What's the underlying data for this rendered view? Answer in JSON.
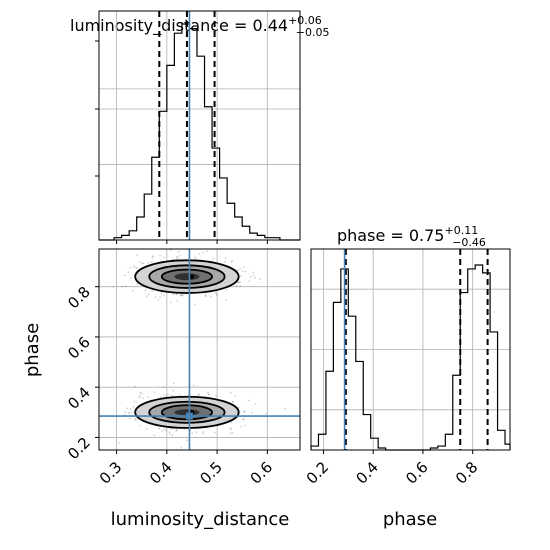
{
  "chart_data": [
    {
      "type": "histogram",
      "panel": "luminosity_distance",
      "title": {
        "main": "luminosity_distance = 0.44",
        "sup": "+0.06",
        "sub": "−0.05"
      },
      "xlim": [
        0.265,
        0.665
      ],
      "bin_edges": [
        0.265,
        0.28,
        0.295,
        0.31,
        0.325,
        0.34,
        0.355,
        0.37,
        0.385,
        0.4,
        0.415,
        0.43,
        0.445,
        0.46,
        0.475,
        0.49,
        0.505,
        0.52,
        0.535,
        0.55,
        0.565,
        0.58,
        0.595,
        0.61,
        0.625,
        0.64,
        0.655,
        0.665
      ],
      "counts": [
        0,
        0,
        1,
        2,
        4,
        10,
        20,
        36,
        56,
        76,
        90,
        94,
        92,
        80,
        58,
        40,
        27,
        16,
        10,
        6,
        3,
        2,
        1,
        1,
        0,
        0,
        0
      ],
      "quantiles": [
        0.385,
        0.44,
        0.495
      ],
      "truth": 0.445,
      "grid": true
    },
    {
      "type": "histogram",
      "panel": "phase",
      "title": {
        "main": "phase = 0.75",
        "sup": "+0.11",
        "sub": "−0.46"
      },
      "xlim": [
        0.15,
        0.95
      ],
      "xticks": [
        "0.2",
        "0.4",
        "0.6",
        "0.8"
      ],
      "xlabel": "phase",
      "bin_edges": [
        0.15,
        0.18,
        0.21,
        0.24,
        0.27,
        0.3,
        0.33,
        0.36,
        0.39,
        0.42,
        0.45,
        0.48,
        0.51,
        0.54,
        0.57,
        0.6,
        0.63,
        0.66,
        0.69,
        0.72,
        0.75,
        0.78,
        0.81,
        0.84,
        0.87,
        0.9,
        0.93,
        0.95
      ],
      "counts": [
        2,
        8,
        40,
        75,
        92,
        68,
        45,
        18,
        6,
        1,
        0,
        0,
        0,
        0,
        0,
        0,
        1,
        2,
        8,
        38,
        80,
        92,
        94,
        90,
        60,
        10,
        3
      ],
      "quantiles": [
        0.29,
        0.75,
        0.86
      ],
      "truth": 0.285,
      "grid": true
    },
    {
      "type": "scatter-contour",
      "panel": "luminosity_distance vs phase",
      "xlim": [
        0.265,
        0.665
      ],
      "ylim": [
        0.15,
        0.95
      ],
      "xticks": [
        "0.3",
        "0.4",
        "0.5",
        "0.6"
      ],
      "yticks": [
        "0.2",
        "0.4",
        "0.6",
        "0.8"
      ],
      "xlabel": "luminosity_distance",
      "ylabel": "phase",
      "modes": [
        {
          "cx": 0.44,
          "cy": 0.3,
          "contours": [
            [
              0.103,
              0.062
            ],
            [
              0.075,
              0.042
            ],
            [
              0.05,
              0.028
            ],
            [
              0.025,
              0.012
            ]
          ]
        },
        {
          "cx": 0.44,
          "cy": 0.84,
          "contours": [
            [
              0.103,
              0.065
            ],
            [
              0.075,
              0.045
            ],
            [
              0.05,
              0.028
            ],
            [
              0.025,
              0.014
            ]
          ]
        }
      ],
      "truth": {
        "x": 0.445,
        "y": 0.285
      },
      "grid": true
    }
  ],
  "colors": {
    "truth": "#4682b4",
    "hist": "#000000",
    "grid": "#b0b0b0",
    "contour": "#000000"
  }
}
